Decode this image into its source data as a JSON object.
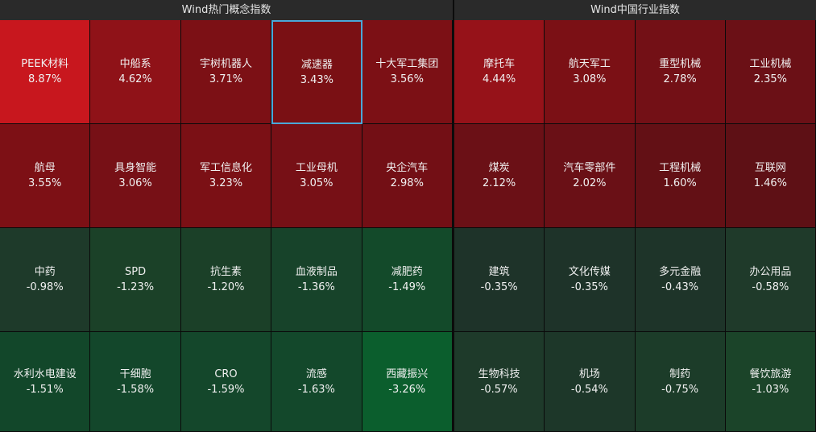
{
  "panels": [
    {
      "title": "Wind热门概念指数",
      "columns": 5,
      "tiles": [
        {
          "name": "PEEK材料",
          "change": "8.87%",
          "color": "#c8171e"
        },
        {
          "name": "中船系",
          "change": "4.62%",
          "color": "#8f1218"
        },
        {
          "name": "宇树机器人",
          "change": "3.71%",
          "color": "#7c1015"
        },
        {
          "name": "减速器",
          "change": "3.43%",
          "color": "#7a1014",
          "selected": true
        },
        {
          "name": "十大军工集团",
          "change": "3.56%",
          "color": "#7c1015"
        },
        {
          "name": "航母",
          "change": "3.55%",
          "color": "#7d1015"
        },
        {
          "name": "具身智能",
          "change": "3.06%",
          "color": "#771016"
        },
        {
          "name": "军工信息化",
          "change": "3.23%",
          "color": "#7b1015"
        },
        {
          "name": "工业母机",
          "change": "3.05%",
          "color": "#771016"
        },
        {
          "name": "央企汽车",
          "change": "2.98%",
          "color": "#730f15"
        },
        {
          "name": "中药",
          "change": "-0.98%",
          "color": "#1e3a2a"
        },
        {
          "name": "SPD",
          "change": "-1.23%",
          "color": "#1b4128"
        },
        {
          "name": "抗生素",
          "change": "-1.20%",
          "color": "#1b4028"
        },
        {
          "name": "血液制品",
          "change": "-1.36%",
          "color": "#17432a"
        },
        {
          "name": "减肥药",
          "change": "-1.49%",
          "color": "#134a2a"
        },
        {
          "name": "水利水电建设",
          "change": "-1.51%",
          "color": "#12472a"
        },
        {
          "name": "干细胞",
          "change": "-1.58%",
          "color": "#13472b"
        },
        {
          "name": "CRO",
          "change": "-1.59%",
          "color": "#14472b"
        },
        {
          "name": "流感",
          "change": "-1.63%",
          "color": "#13482b"
        },
        {
          "name": "西藏振兴",
          "change": "-3.26%",
          "color": "#0b5e2d"
        }
      ]
    },
    {
      "title": "Wind中国行业指数",
      "columns": 4,
      "tiles": [
        {
          "name": "摩托车",
          "change": "4.44%",
          "color": "#961219"
        },
        {
          "name": "航天军工",
          "change": "3.08%",
          "color": "#7b1015"
        },
        {
          "name": "重型机械",
          "change": "2.78%",
          "color": "#731016"
        },
        {
          "name": "工业机械",
          "change": "2.35%",
          "color": "#6b1016"
        },
        {
          "name": "煤炭",
          "change": "2.12%",
          "color": "#6b1016"
        },
        {
          "name": "汽车零部件",
          "change": "2.02%",
          "color": "#6a1016"
        },
        {
          "name": "工程机械",
          "change": "1.60%",
          "color": "#631015"
        },
        {
          "name": "互联网",
          "change": "1.46%",
          "color": "#5e1015"
        },
        {
          "name": "建筑",
          "change": "-0.35%",
          "color": "#1e3329"
        },
        {
          "name": "文化传媒",
          "change": "-0.35%",
          "color": "#1e3329"
        },
        {
          "name": "多元金融",
          "change": "-0.43%",
          "color": "#1e3429"
        },
        {
          "name": "办公用品",
          "change": "-0.58%",
          "color": "#1f3a2a"
        },
        {
          "name": "生物科技",
          "change": "-0.57%",
          "color": "#1e3a2a"
        },
        {
          "name": "机场",
          "change": "-0.54%",
          "color": "#1d3729"
        },
        {
          "name": "制药",
          "change": "-0.75%",
          "color": "#1c3c29"
        },
        {
          "name": "餐饮旅游",
          "change": "-1.03%",
          "color": "#1b4429"
        }
      ]
    }
  ]
}
